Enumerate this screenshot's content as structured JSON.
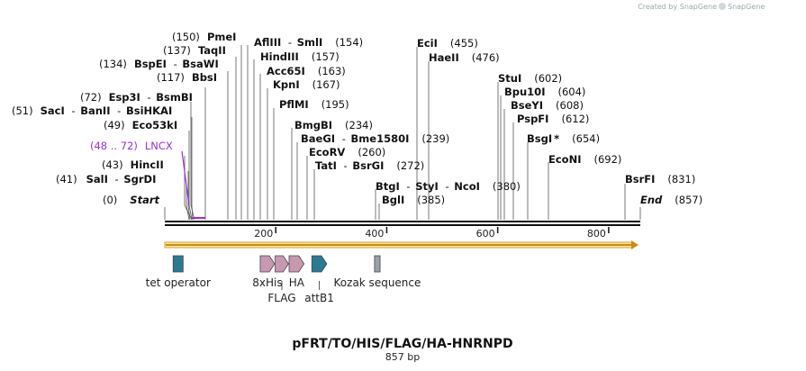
{
  "credit": "Created by SnapGene",
  "plasmid": {
    "name": "pFRT/TO/HIS/FLAG/HA-HNRNPD",
    "length_label": "857 bp",
    "length": 857
  },
  "axis": {
    "ticks": [
      200,
      400,
      600,
      800
    ]
  },
  "colors": {
    "backbone": "#111111",
    "orf": "#e0b040",
    "lncx": "#9b30d9",
    "teal": "#2b7a90",
    "pink": "#c898b0",
    "gray": "#9aa0a8"
  },
  "sites": [
    {
      "pos": "(0)",
      "name": "Start",
      "italic": true
    },
    {
      "pos": "(41)",
      "name": "SalI",
      "extra": "SgrDI"
    },
    {
      "pos": "(43)",
      "name": "HincII"
    },
    {
      "pos": "(48 .. 72)",
      "name": "LNCX",
      "feature": true
    },
    {
      "pos": "(49)",
      "name": "Eco53kI"
    },
    {
      "pos": "(51)",
      "name": "SacI",
      "extra": "BanII",
      "extra2": "BsiHKAI"
    },
    {
      "pos": "(72)",
      "name": "Esp3I",
      "extra": "BsmBI"
    },
    {
      "pos": "(117)",
      "name": "BbsI"
    },
    {
      "pos": "(134)",
      "name": "BspEI",
      "extra": "BsaWI"
    },
    {
      "pos": "(137)",
      "name": "TaqII"
    },
    {
      "pos": "(150)",
      "name": "PmeI"
    },
    {
      "name": "AflIII",
      "extra": "SmlI",
      "pos": "(154)"
    },
    {
      "name": "HindIII",
      "pos": "(157)"
    },
    {
      "name": "Acc65I",
      "pos": "(163)"
    },
    {
      "name": "KpnI",
      "pos": "(167)"
    },
    {
      "name": "PflMI",
      "pos": "(195)"
    },
    {
      "name": "BmgBI",
      "pos": "(234)"
    },
    {
      "name": "BaeGI",
      "extra": "Bme1580I",
      "pos": "(239)"
    },
    {
      "name": "EcoRV",
      "pos": "(260)"
    },
    {
      "name": "TatI",
      "extra": "BsrGI",
      "pos": "(272)"
    },
    {
      "name": "BtgI",
      "extra": "StyI",
      "extra2": "NcoI",
      "pos": "(380)"
    },
    {
      "name": "BglI",
      "pos": "(385)"
    },
    {
      "name": "EciI",
      "pos": "(455)"
    },
    {
      "name": "HaeII",
      "pos": "(476)"
    },
    {
      "name": "StuI",
      "pos": "(602)"
    },
    {
      "name": "Bpu10I",
      "pos": "(604)"
    },
    {
      "name": "BseYI",
      "pos": "(608)"
    },
    {
      "name": "PspFI",
      "pos": "(612)"
    },
    {
      "name": "BsgI",
      "star": "*",
      "pos": "(654)"
    },
    {
      "name": "EcoNI",
      "pos": "(692)"
    },
    {
      "name": "BsrFI",
      "pos": "(831)"
    },
    {
      "name": "End",
      "italic": true,
      "pos": "(857)"
    }
  ],
  "features": [
    {
      "name": "tet operator",
      "type": "rect",
      "color": "teal",
      "start": 15,
      "end": 33
    },
    {
      "name": "8xHis",
      "type": "arrow",
      "color": "pink",
      "start": 172,
      "end": 198
    },
    {
      "name": "FLAG",
      "type": "arrow",
      "color": "pink",
      "start": 199,
      "end": 223
    },
    {
      "name": "HA",
      "type": "arrow",
      "color": "pink",
      "start": 224,
      "end": 251
    },
    {
      "name": "attB1",
      "type": "arrow",
      "color": "teal",
      "start": 265,
      "end": 292
    },
    {
      "name": "Kozak sequence",
      "type": "rect",
      "color": "gray",
      "start": 378,
      "end": 388
    }
  ],
  "orf": {
    "start": 0,
    "end": 857
  }
}
